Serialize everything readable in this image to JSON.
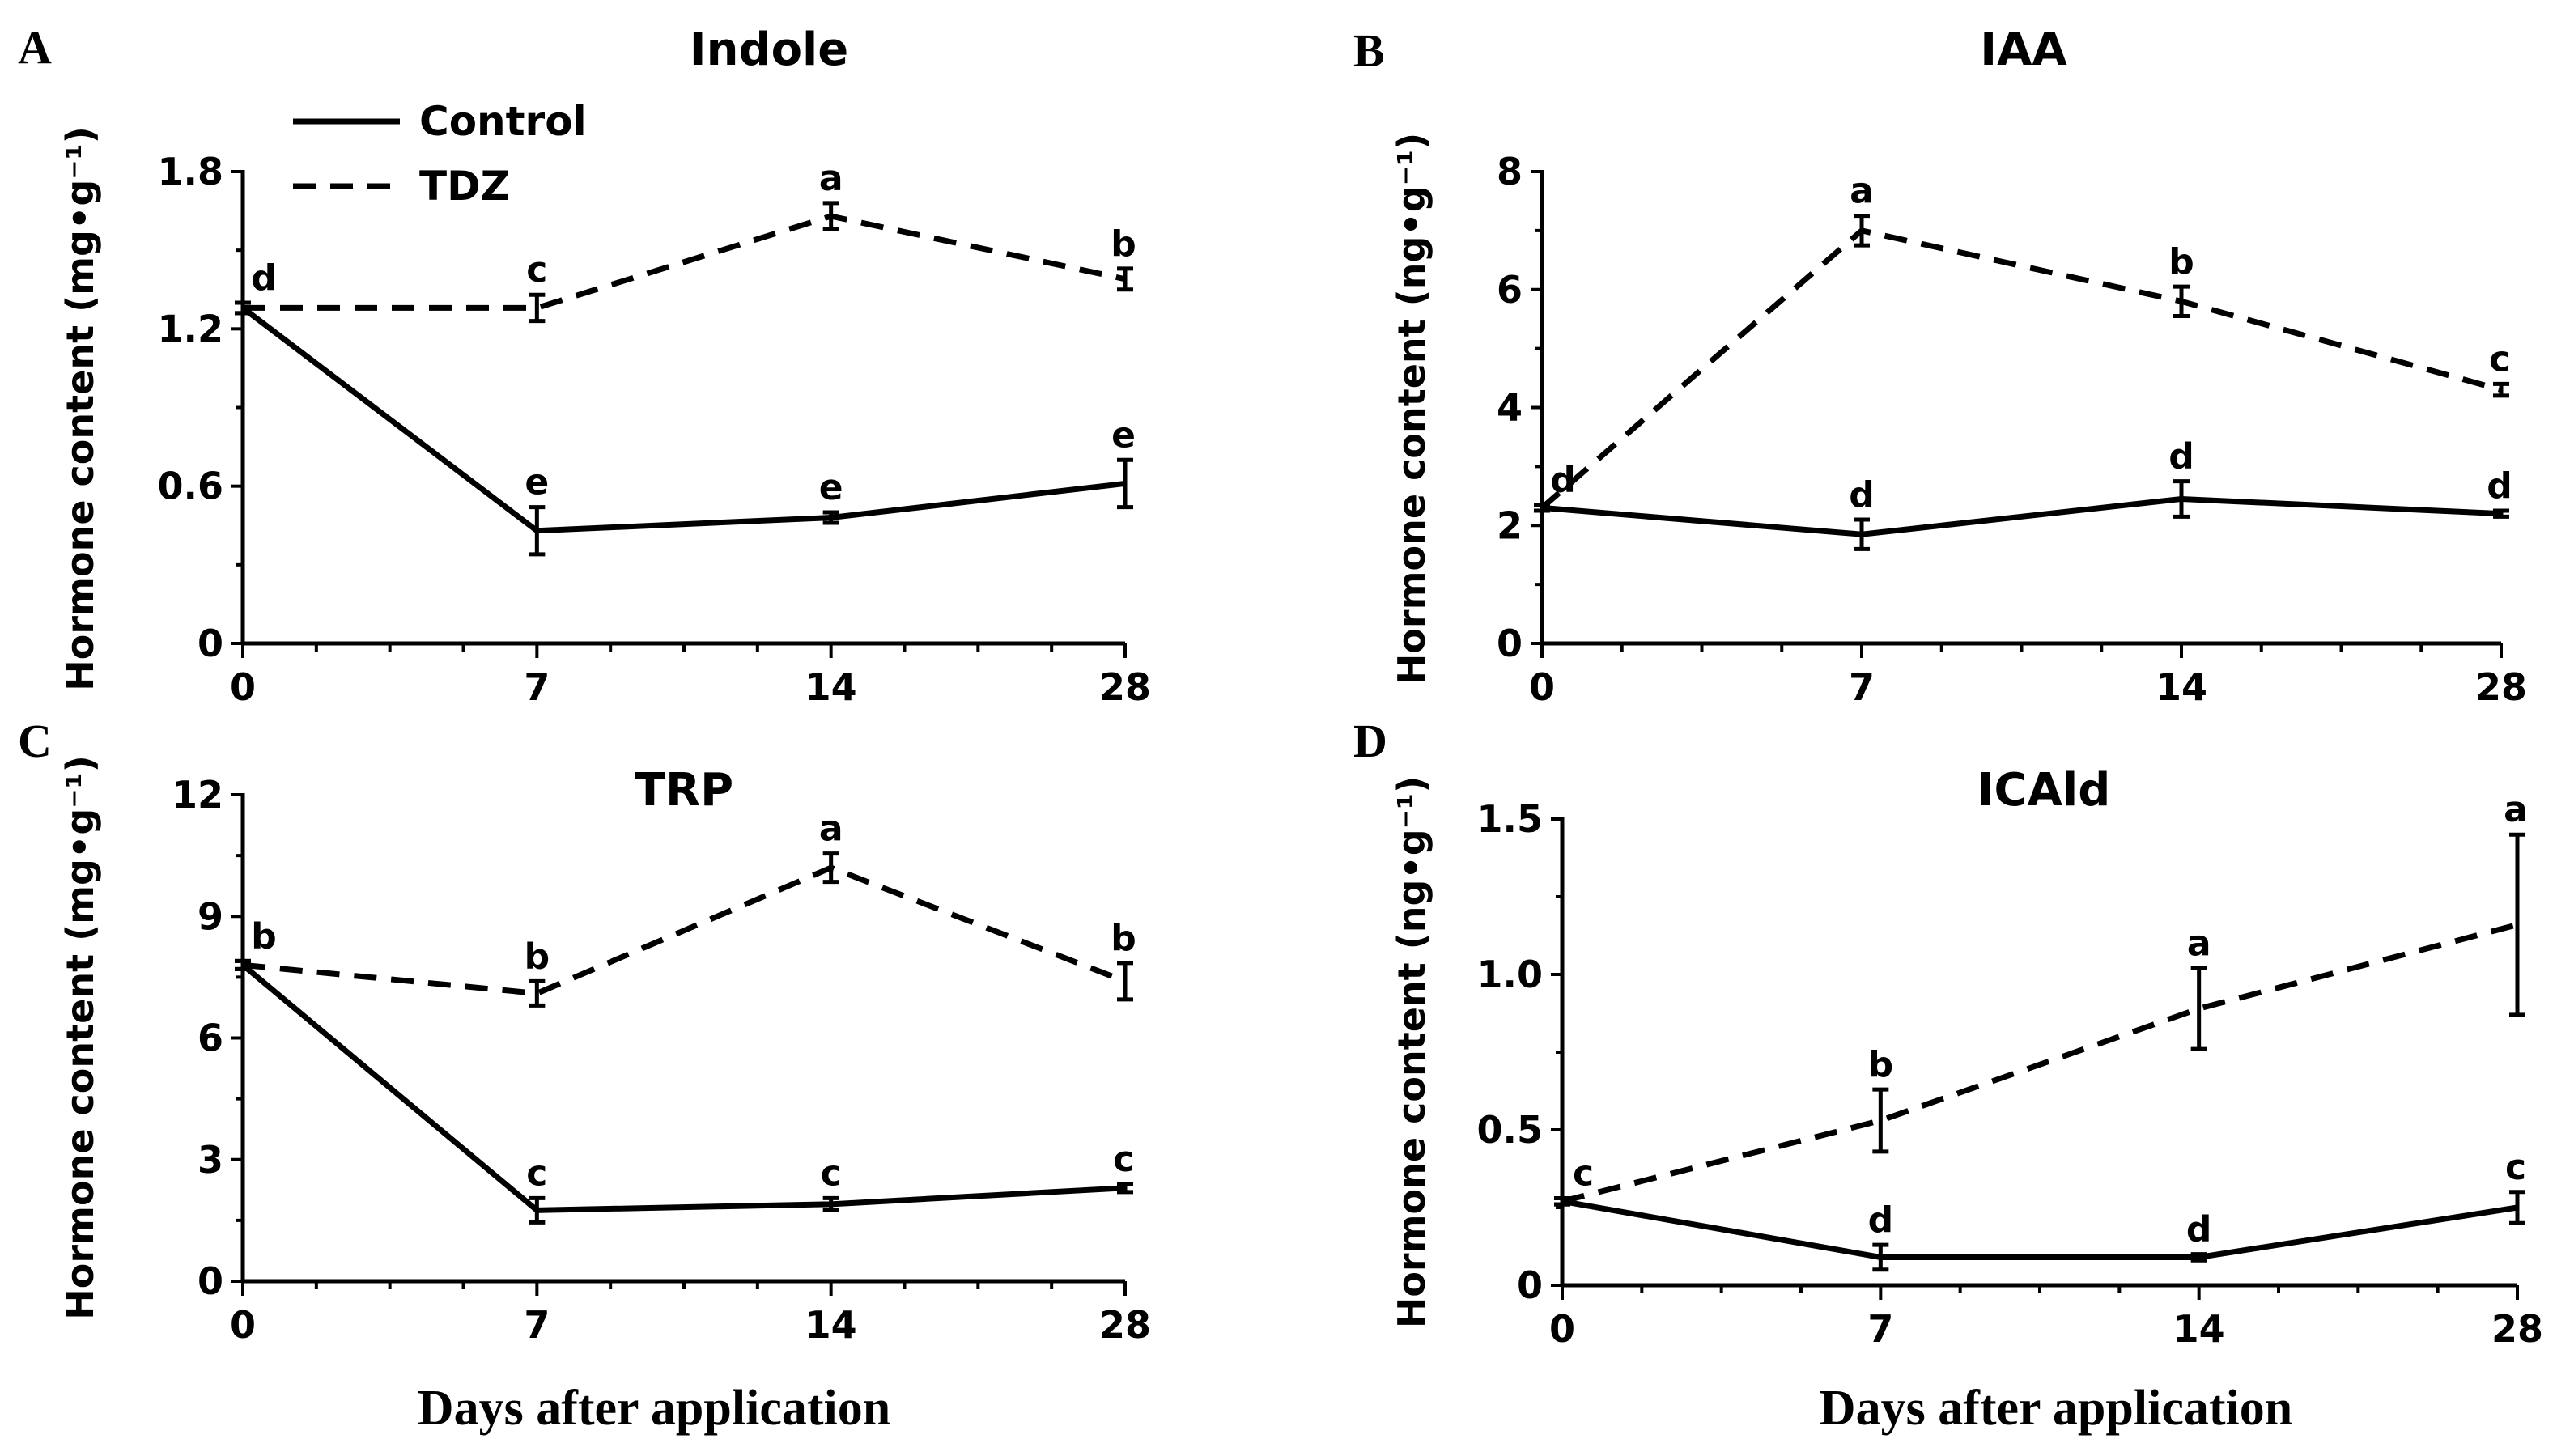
{
  "colors": {
    "line": "#000000",
    "background": "#ffffff"
  },
  "legend": {
    "items": [
      "Control",
      "TDZ"
    ]
  },
  "x_axis_label": "Days after application",
  "chart_data": [
    {
      "panel": "A",
      "type": "line",
      "title": "Indole",
      "ylabel": "Hormone content (mg•g⁻¹)",
      "categories": [
        "0",
        "7",
        "14",
        "28"
      ],
      "yticks": [
        "0",
        "0.6",
        "1.2",
        "1.8"
      ],
      "ylim": [
        0,
        1.8
      ],
      "series": [
        {
          "name": "Control",
          "values": [
            1.28,
            0.43,
            0.48,
            0.61
          ],
          "errors": [
            0.02,
            0.09,
            0.02,
            0.09
          ],
          "letters": [
            "",
            "e",
            "e",
            "e"
          ]
        },
        {
          "name": "TDZ",
          "values": [
            1.28,
            1.28,
            1.63,
            1.39
          ],
          "errors": [
            0.02,
            0.05,
            0.05,
            0.04
          ],
          "letters": [
            "d",
            "c",
            "a",
            "b"
          ]
        }
      ]
    },
    {
      "panel": "B",
      "type": "line",
      "title": "IAA",
      "ylabel": "Hormone content (ng•g⁻¹)",
      "categories": [
        "0",
        "7",
        "14",
        "28"
      ],
      "yticks": [
        "0",
        "2",
        "4",
        "6",
        "8"
      ],
      "ylim": [
        0,
        8
      ],
      "series": [
        {
          "name": "Control",
          "values": [
            2.3,
            1.85,
            2.45,
            2.2
          ],
          "errors": [
            0.05,
            0.25,
            0.3,
            0.05
          ],
          "letters": [
            "d",
            "d",
            "d",
            "d"
          ]
        },
        {
          "name": "TDZ",
          "values": [
            2.3,
            7.0,
            5.8,
            4.3
          ],
          "errors": [
            0.05,
            0.25,
            0.25,
            0.1
          ],
          "letters": [
            "",
            "a",
            "b",
            "c"
          ]
        }
      ]
    },
    {
      "panel": "C",
      "type": "line",
      "title": "TRP",
      "ylabel": "Hormone content (mg•g⁻¹)",
      "categories": [
        "0",
        "7",
        "14",
        "28"
      ],
      "yticks": [
        "0",
        "3",
        "6",
        "9",
        "12"
      ],
      "ylim": [
        0,
        12
      ],
      "series": [
        {
          "name": "Control",
          "values": [
            7.8,
            1.75,
            1.9,
            2.3
          ],
          "errors": [
            0.1,
            0.3,
            0.15,
            0.1
          ],
          "letters": [
            "",
            "c",
            "c",
            "c"
          ]
        },
        {
          "name": "TDZ",
          "values": [
            7.8,
            7.1,
            10.2,
            7.4
          ],
          "errors": [
            0.1,
            0.3,
            0.35,
            0.45
          ],
          "letters": [
            "b",
            "b",
            "a",
            "b"
          ]
        }
      ]
    },
    {
      "panel": "D",
      "type": "line",
      "title": "ICAld",
      "ylabel": "Hormone content (ng•g⁻¹)",
      "categories": [
        "0",
        "7",
        "14",
        "28"
      ],
      "yticks": [
        "0",
        "0.5",
        "1.0",
        "1.5"
      ],
      "ylim": [
        0,
        1.5
      ],
      "series": [
        {
          "name": "Control",
          "values": [
            0.27,
            0.09,
            0.09,
            0.25
          ],
          "errors": [
            0.01,
            0.04,
            0.01,
            0.05
          ],
          "letters": [
            "c",
            "d",
            "d",
            "c"
          ]
        },
        {
          "name": "TDZ",
          "values": [
            0.27,
            0.53,
            0.89,
            1.16
          ],
          "errors": [
            0.01,
            0.1,
            0.13,
            0.29
          ],
          "letters": [
            "",
            "b",
            "a",
            "a"
          ]
        }
      ]
    }
  ]
}
